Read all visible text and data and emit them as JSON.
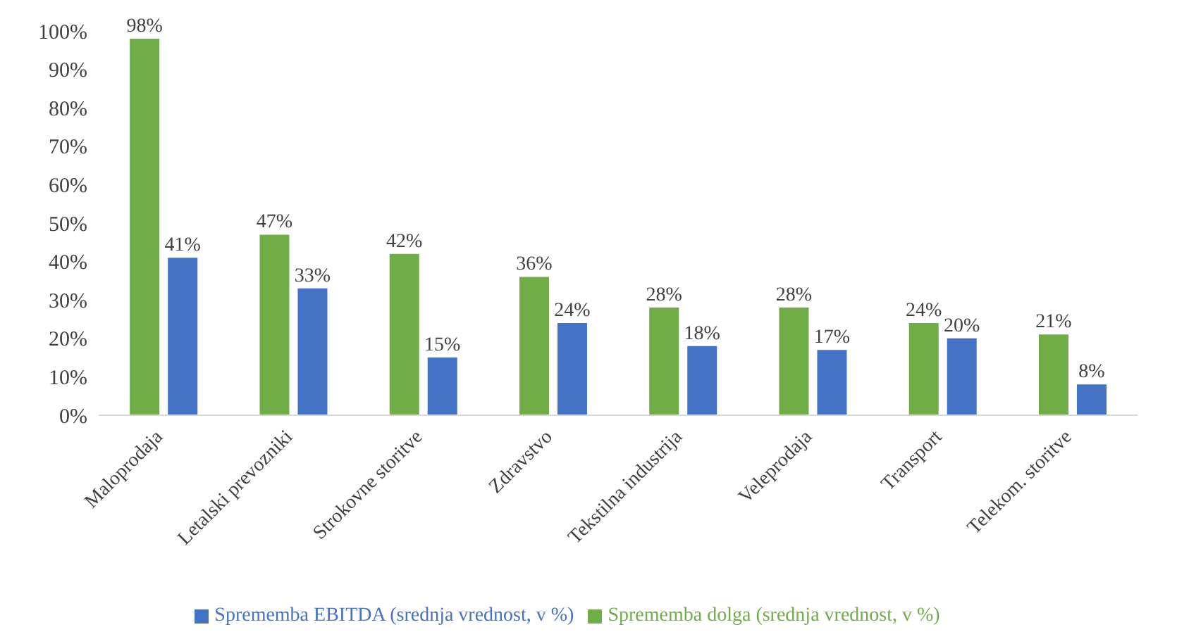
{
  "chart_data": {
    "type": "bar",
    "categories": [
      "Maloprodaja",
      "Letalski prevozniki",
      "Strokovne storitve",
      "Zdravstvo",
      "Tekstilna industrija",
      "Veleprodaja",
      "Transport",
      "Telekom. storitve"
    ],
    "series": [
      {
        "name": "Sprememba dolga (srednja vrednost, v %)",
        "color": "#70ad47",
        "values": [
          98,
          47,
          42,
          36,
          28,
          28,
          24,
          21
        ],
        "value_labels": [
          "98%",
          "47%",
          "42%",
          "36%",
          "28%",
          "28%",
          "24%",
          "21%"
        ]
      },
      {
        "name": "Sprememba EBITDA (srednja vrednost, v %)",
        "color": "#4472c4",
        "values": [
          41,
          33,
          15,
          24,
          18,
          17,
          20,
          8
        ],
        "value_labels": [
          "41%",
          "33%",
          "15%",
          "24%",
          "18%",
          "17%",
          "20%",
          "8%"
        ]
      }
    ],
    "ylim": [
      0,
      100
    ],
    "yticks": [
      {
        "value": 0,
        "label": "0%"
      },
      {
        "value": 10,
        "label": "10%"
      },
      {
        "value": 20,
        "label": "20%"
      },
      {
        "value": 30,
        "label": "30%"
      },
      {
        "value": 40,
        "label": "40%"
      },
      {
        "value": 50,
        "label": "50%"
      },
      {
        "value": 60,
        "label": "60%"
      },
      {
        "value": 70,
        "label": "70%"
      },
      {
        "value": 80,
        "label": "80%"
      },
      {
        "value": 90,
        "label": "90%"
      },
      {
        "value": 100,
        "label": "100%"
      }
    ],
    "grid": false,
    "legend": "bottom"
  }
}
